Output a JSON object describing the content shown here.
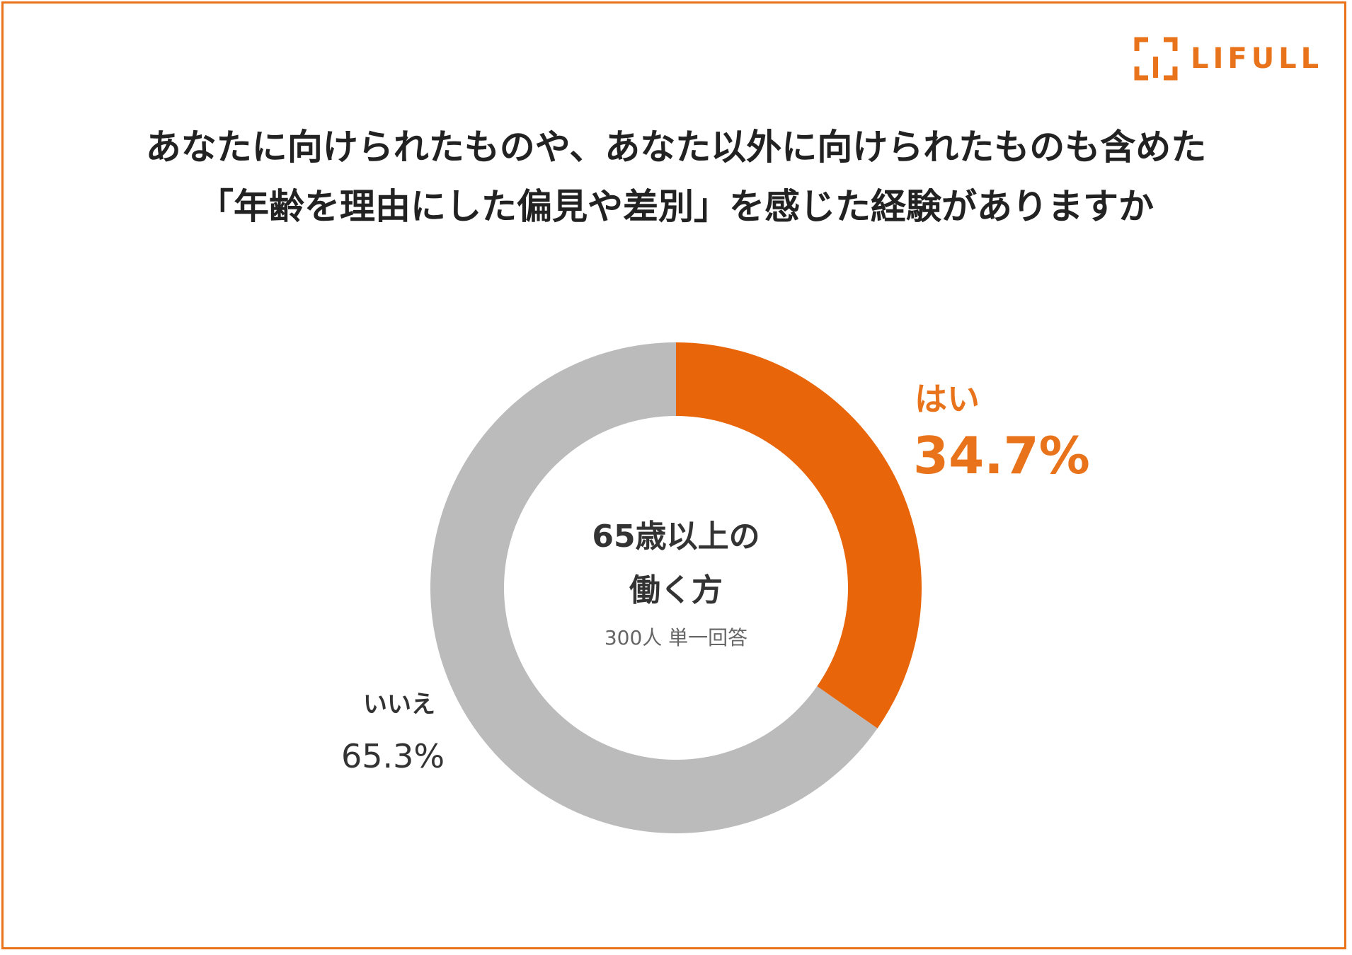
{
  "brand": {
    "logo_text": "LIFULL",
    "accent_color": "#e8731a"
  },
  "title": {
    "line1": "あなたに向けられたものや、あなた以外に向けられたものも含めた",
    "line2": "「年齢を理由にした偏見や差別」を感じた経験がありますか"
  },
  "center": {
    "line1": "65歳以上の",
    "line2": "働く方",
    "line3": "300人 単一回答"
  },
  "chart_data": {
    "type": "pie",
    "variant": "donut",
    "start": "12 o'clock, clockwise",
    "categories": [
      "はい",
      "いいえ"
    ],
    "values": [
      34.7,
      65.3
    ],
    "value_labels": [
      "34.7%",
      "65.3%"
    ],
    "colors": [
      "#e8650a",
      "#bbbbbb"
    ],
    "label_colors": [
      "#e8731a",
      "#333333"
    ]
  }
}
